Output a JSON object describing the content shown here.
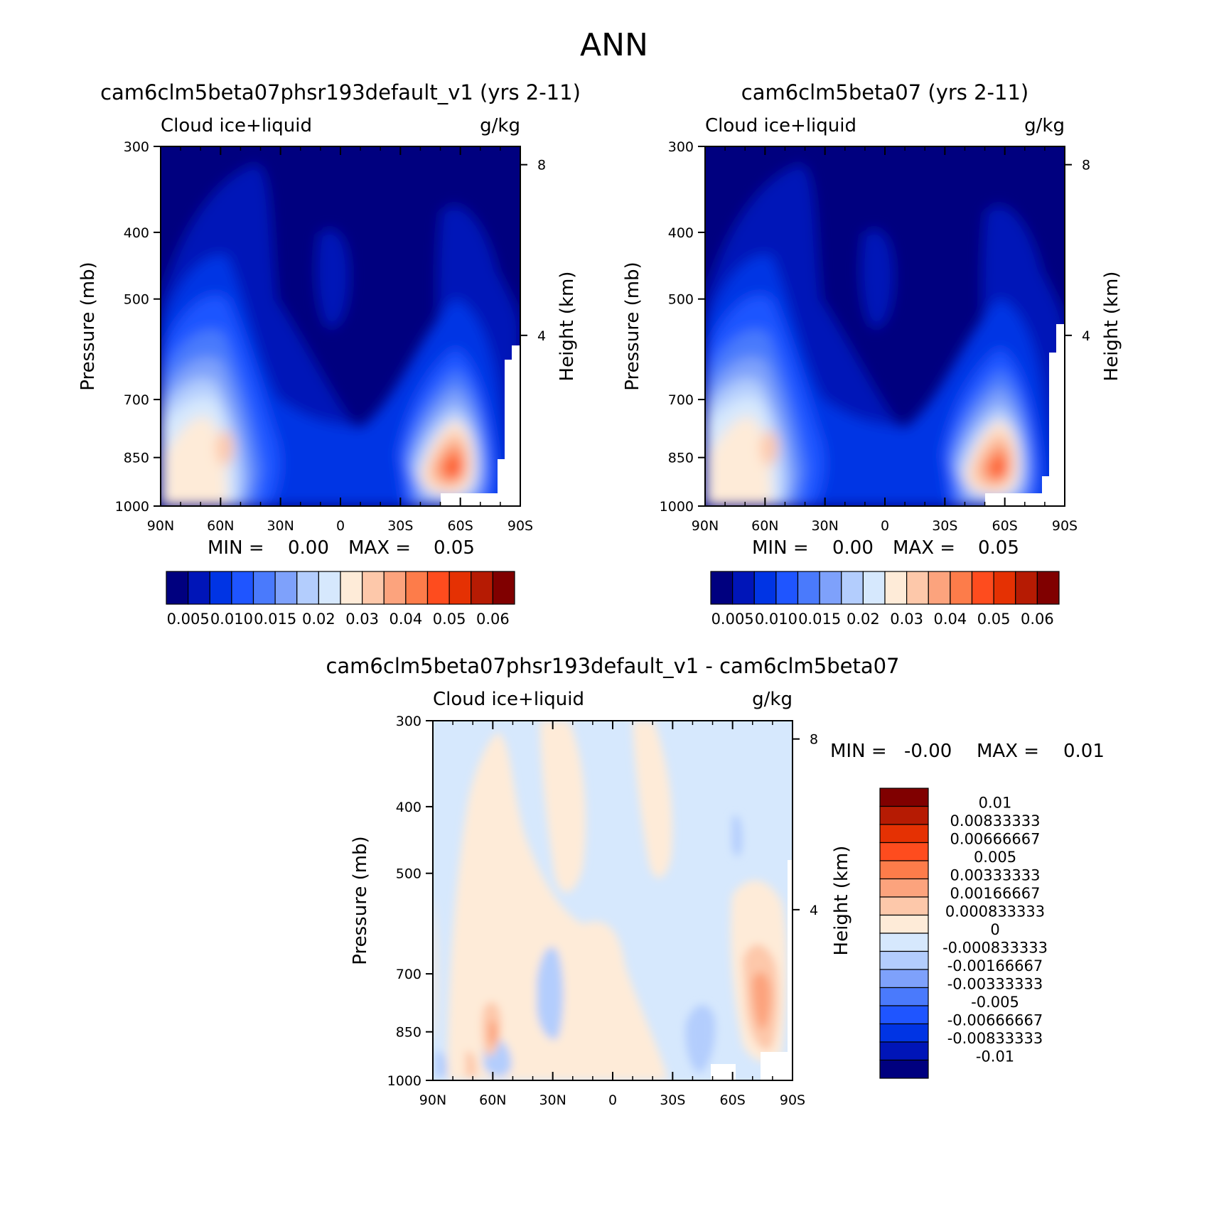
{
  "page_title": "ANN",
  "chart_data": [
    {
      "type": "heatmap",
      "panel": "test",
      "title": "cam6clm5beta07phsr193default_v1 (yrs 2-11)",
      "left_label": "Cloud ice+liquid",
      "right_label": "g/kg",
      "xlabel": "",
      "ylabel": "Pressure (mb)",
      "y2label": "Height (km)",
      "x_ticks": [
        "90N",
        "60N",
        "30N",
        "0",
        "30S",
        "60S",
        "90S"
      ],
      "y_ticks": [
        "300",
        "400",
        "500",
        "700",
        "850",
        "1000"
      ],
      "y_values": [
        300,
        400,
        500,
        700,
        850,
        1000
      ],
      "y2_ticks": [
        "8",
        "4"
      ],
      "y2_values": [
        8,
        4
      ],
      "xlim": [
        90,
        -90
      ],
      "ylim": [
        1000,
        300
      ],
      "min_label": "MIN =",
      "min_value": "0.00",
      "max_label": "MAX =",
      "max_value": "0.05",
      "colorbar": {
        "orientation": "horizontal",
        "labels": [
          "0.005",
          "0.010",
          "0.015",
          "0.02",
          "0.03",
          "0.04",
          "0.05",
          "0.06"
        ],
        "colors": [
          "#00007f",
          "#0015b8",
          "#0034e4",
          "#1f55ff",
          "#4a7afc",
          "#7ea1fb",
          "#b3cdfd",
          "#d6e8fd",
          "#feebd8",
          "#fdc8aa",
          "#fca37d",
          "#fd7c4a",
          "#fe4c1e",
          "#e53103",
          "#b61b03",
          "#800000"
        ]
      },
      "features": [
        {
          "lat": 53,
          "p": 850,
          "value": 0.027
        },
        {
          "lat": -52,
          "p": 850,
          "value": 0.05
        },
        {
          "lat": 10,
          "p": 540,
          "value": 0.003
        },
        {
          "lat": 0,
          "p": 1000,
          "value": 0.0
        }
      ]
    },
    {
      "type": "heatmap",
      "panel": "control",
      "title": "cam6clm5beta07 (yrs 2-11)",
      "left_label": "Cloud ice+liquid",
      "right_label": "g/kg",
      "xlabel": "",
      "ylabel": "Pressure (mb)",
      "y2label": "Height (km)",
      "x_ticks": [
        "90N",
        "60N",
        "30N",
        "0",
        "30S",
        "60S",
        "90S"
      ],
      "y_ticks": [
        "300",
        "400",
        "500",
        "700",
        "850",
        "1000"
      ],
      "y_values": [
        300,
        400,
        500,
        700,
        850,
        1000
      ],
      "y2_ticks": [
        "8",
        "4"
      ],
      "y2_values": [
        8,
        4
      ],
      "xlim": [
        90,
        -90
      ],
      "ylim": [
        1000,
        300
      ],
      "min_label": "MIN =",
      "min_value": "0.00",
      "max_label": "MAX =",
      "max_value": "0.05",
      "colorbar": {
        "orientation": "horizontal",
        "labels": [
          "0.005",
          "0.010",
          "0.015",
          "0.02",
          "0.03",
          "0.04",
          "0.05",
          "0.06"
        ],
        "colors": [
          "#00007f",
          "#0015b8",
          "#0034e4",
          "#1f55ff",
          "#4a7afc",
          "#7ea1fb",
          "#b3cdfd",
          "#d6e8fd",
          "#feebd8",
          "#fdc8aa",
          "#fca37d",
          "#fd7c4a",
          "#fe4c1e",
          "#e53103",
          "#b61b03",
          "#800000"
        ]
      },
      "features": [
        {
          "lat": 54,
          "p": 850,
          "value": 0.027
        },
        {
          "lat": -53,
          "p": 850,
          "value": 0.05
        },
        {
          "lat": 10,
          "p": 540,
          "value": 0.003
        }
      ]
    },
    {
      "type": "heatmap",
      "panel": "difference",
      "title": "cam6clm5beta07phsr193default_v1 - cam6clm5beta07",
      "left_label": "Cloud ice+liquid",
      "right_label": "g/kg",
      "xlabel": "",
      "ylabel": "Pressure (mb)",
      "y2label": "Height (km)",
      "x_ticks": [
        "90N",
        "60N",
        "30N",
        "0",
        "30S",
        "60S",
        "90S"
      ],
      "y_ticks": [
        "300",
        "400",
        "500",
        "700",
        "850",
        "1000"
      ],
      "y_values": [
        300,
        400,
        500,
        700,
        850,
        1000
      ],
      "y2_ticks": [
        "8",
        "4"
      ],
      "y2_values": [
        8,
        4
      ],
      "xlim": [
        90,
        -90
      ],
      "ylim": [
        1000,
        300
      ],
      "min_label": "MIN =",
      "min_value": "-0.00",
      "max_label": "MAX =",
      "max_value": "0.01",
      "colorbar": {
        "orientation": "vertical",
        "labels": [
          "0.01",
          "0.00833333",
          "0.00666667",
          "0.005",
          "0.00333333",
          "0.00166667",
          "0.000833333",
          "0",
          "-0.000833333",
          "-0.00166667",
          "-0.00333333",
          "-0.005",
          "-0.00666667",
          "-0.00833333",
          "-0.01"
        ],
        "colors": [
          "#800000",
          "#b61b03",
          "#e53103",
          "#fe4c1e",
          "#fd7c4a",
          "#fca37d",
          "#fdc8aa",
          "#feebd8",
          "#d6e8fd",
          "#b3cdfd",
          "#7ea1fb",
          "#4a7afc",
          "#1f55ff",
          "#0034e4",
          "#0015b8",
          "#00007f"
        ]
      },
      "features": [
        {
          "lat": -75,
          "p": 860,
          "value": 0.004
        },
        {
          "lat": 62,
          "p": 900,
          "value": 0.004
        },
        {
          "lat": 28,
          "p": 850,
          "value": -0.002
        },
        {
          "lat": -48,
          "p": 900,
          "value": -0.002
        }
      ]
    }
  ]
}
